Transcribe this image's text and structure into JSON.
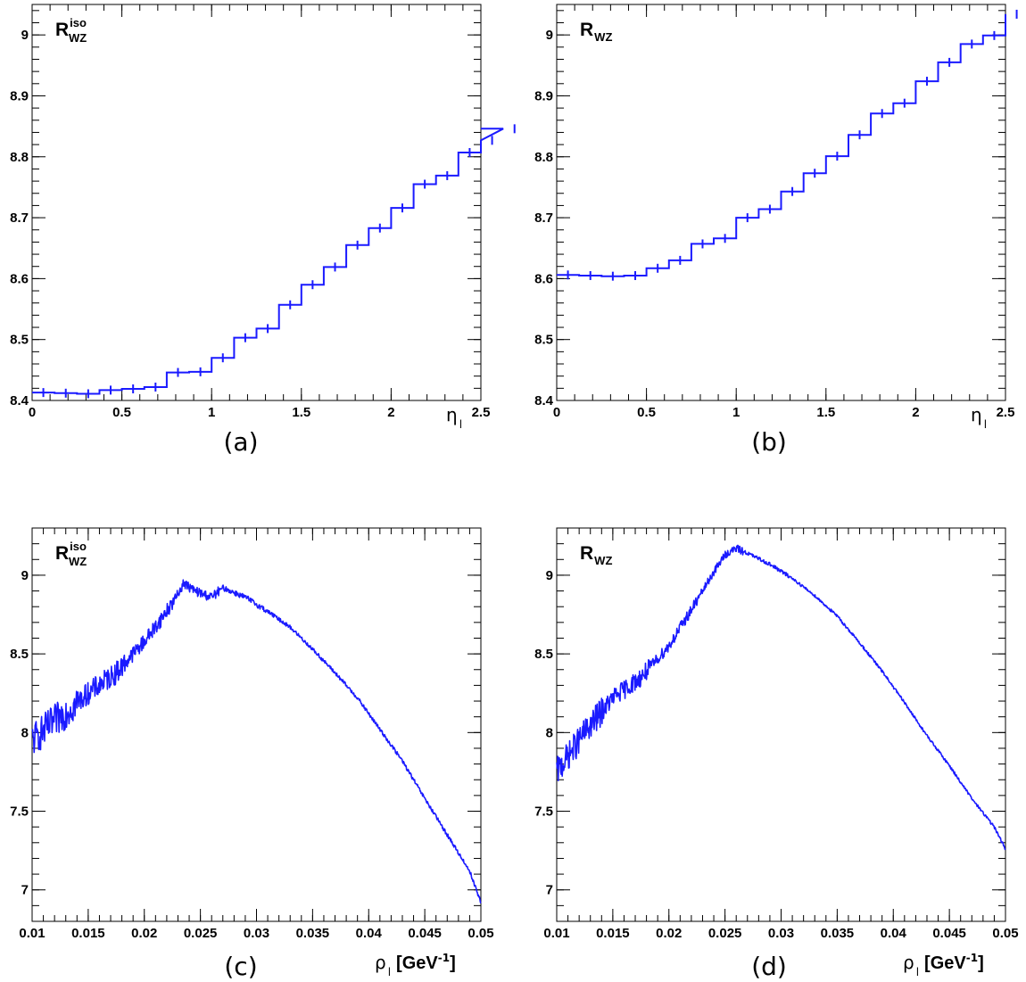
{
  "colors": {
    "line": "#1a1aff",
    "axis": "#000000",
    "background": "#ffffff"
  },
  "chart_data": [
    {
      "id": "a",
      "type": "line",
      "style": "step-histogram",
      "tag": "(a)",
      "ylabel": {
        "main": "R",
        "sub": "WZ",
        "sup": "iso"
      },
      "xlabel": {
        "main": "η",
        "sub": "l",
        "unit": ""
      },
      "xlim": [
        0,
        2.5
      ],
      "ylim": [
        8.4,
        9.05
      ],
      "xticks": [
        0,
        0.5,
        1,
        1.5,
        2,
        2.5
      ],
      "xtick_labels": [
        "0",
        "0.5",
        "1",
        "1.5",
        "2",
        "2.5"
      ],
      "yticks": [
        8.4,
        8.5,
        8.6,
        8.7,
        8.8,
        8.9,
        9
      ],
      "ytick_labels": [
        "8.4",
        "8.5",
        "8.6",
        "8.7",
        "8.8",
        "8.9",
        "9"
      ],
      "bin_width": 0.125,
      "values": [
        8.413,
        8.412,
        8.411,
        8.417,
        8.419,
        8.422,
        8.446,
        8.447,
        8.47,
        8.503,
        8.518,
        8.557,
        8.59,
        8.619,
        8.655,
        8.683,
        8.716,
        8.755,
        8.769,
        8.807,
        8.827,
        8.846
      ]
    },
    {
      "id": "b",
      "type": "line",
      "style": "step-histogram",
      "tag": "(b)",
      "ylabel": {
        "main": "R",
        "sub": "WZ",
        "sup": ""
      },
      "xlabel": {
        "main": "η",
        "sub": "l",
        "unit": ""
      },
      "xlim": [
        0,
        2.5
      ],
      "ylim": [
        8.4,
        9.05
      ],
      "xticks": [
        0,
        0.5,
        1,
        1.5,
        2,
        2.5
      ],
      "xtick_labels": [
        "0",
        "0.5",
        "1",
        "1.5",
        "2",
        "2.5"
      ],
      "yticks": [
        8.4,
        8.5,
        8.6,
        8.7,
        8.8,
        8.9,
        9
      ],
      "ytick_labels": [
        "8.4",
        "8.5",
        "8.6",
        "8.7",
        "8.8",
        "8.9",
        "9"
      ],
      "bin_width": 0.125,
      "values": [
        8.606,
        8.605,
        8.604,
        8.605,
        8.617,
        8.63,
        8.657,
        8.666,
        8.7,
        8.714,
        8.743,
        8.773,
        8.801,
        8.836,
        8.871,
        8.888,
        8.924,
        8.955,
        8.985,
        8.999,
        9.034
      ]
    },
    {
      "id": "c",
      "type": "line",
      "style": "noisy-curve",
      "tag": "(c)",
      "ylabel": {
        "main": "R",
        "sub": "WZ",
        "sup": "iso"
      },
      "xlabel": {
        "main": "ρ",
        "sub": "l",
        "unit": "[GeV",
        "unit_sup": "-1",
        "unit_close": "]"
      },
      "xlim": [
        0.01,
        0.05
      ],
      "ylim": [
        6.8,
        9.3
      ],
      "xticks": [
        0.01,
        0.015,
        0.02,
        0.025,
        0.03,
        0.035,
        0.04,
        0.045,
        0.05
      ],
      "xtick_labels": [
        "0.01",
        "0.015",
        "0.02",
        "0.025",
        "0.03",
        "0.035",
        "0.04",
        "0.045",
        "0.05"
      ],
      "yticks": [
        7,
        7.5,
        8,
        8.5,
        9
      ],
      "ytick_labels": [
        "7",
        "7.5",
        "8",
        "8.5",
        "9"
      ],
      "x": [
        0.01,
        0.0125,
        0.015,
        0.0175,
        0.02,
        0.0215,
        0.023,
        0.0235,
        0.0245,
        0.026,
        0.027,
        0.029,
        0.031,
        0.033,
        0.035,
        0.037,
        0.039,
        0.041,
        0.043,
        0.045,
        0.047,
        0.049,
        0.05
      ],
      "y": [
        7.95,
        8.1,
        8.25,
        8.38,
        8.58,
        8.72,
        8.88,
        8.95,
        8.9,
        8.86,
        8.92,
        8.86,
        8.77,
        8.67,
        8.53,
        8.38,
        8.22,
        8.02,
        7.82,
        7.58,
        7.35,
        7.12,
        6.92
      ],
      "noise_amplitude": [
        0.18,
        0.12,
        0.08,
        0.05,
        0.03,
        0.02
      ]
    },
    {
      "id": "d",
      "type": "line",
      "style": "noisy-curve",
      "tag": "(d)",
      "ylabel": {
        "main": "R",
        "sub": "WZ",
        "sup": ""
      },
      "xlabel": {
        "main": "ρ",
        "sub": "l",
        "unit": "[GeV",
        "unit_sup": "-1",
        "unit_close": "]"
      },
      "xlim": [
        0.01,
        0.05
      ],
      "ylim": [
        6.8,
        9.3
      ],
      "xticks": [
        0.01,
        0.015,
        0.02,
        0.025,
        0.03,
        0.035,
        0.04,
        0.045,
        0.05
      ],
      "xtick_labels": [
        "0.01",
        "0.015",
        "0.02",
        "0.025",
        "0.03",
        "0.035",
        "0.04",
        "0.045",
        "0.05"
      ],
      "yticks": [
        7,
        7.5,
        8,
        8.5,
        9
      ],
      "ytick_labels": [
        "7",
        "7.5",
        "8",
        "8.5",
        "9"
      ],
      "x": [
        0.01,
        0.0125,
        0.015,
        0.0175,
        0.02,
        0.022,
        0.024,
        0.025,
        0.026,
        0.027,
        0.029,
        0.031,
        0.033,
        0.035,
        0.037,
        0.039,
        0.041,
        0.043,
        0.045,
        0.047,
        0.049,
        0.05
      ],
      "y": [
        7.75,
        8.0,
        8.22,
        8.35,
        8.55,
        8.78,
        9.02,
        9.13,
        9.17,
        9.14,
        9.07,
        8.98,
        8.87,
        8.74,
        8.57,
        8.39,
        8.19,
        7.98,
        7.79,
        7.58,
        7.4,
        7.26
      ],
      "noise_amplitude": [
        0.15,
        0.1,
        0.06,
        0.04,
        0.02,
        0.015
      ]
    }
  ]
}
